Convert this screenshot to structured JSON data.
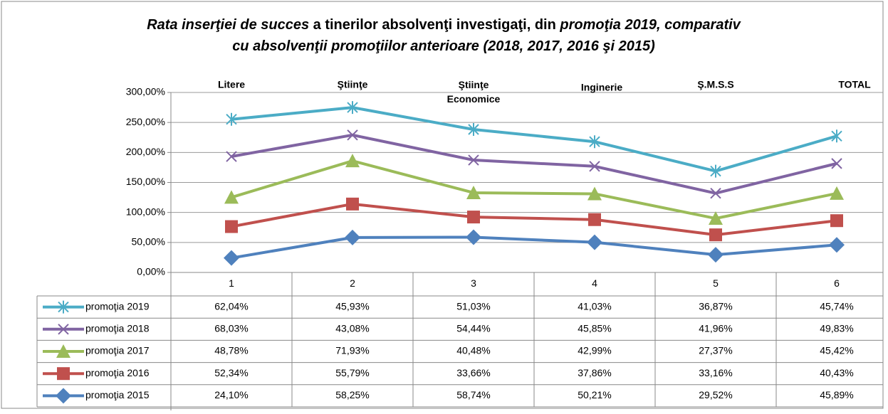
{
  "chart_data": {
    "type": "stacked_line",
    "title": [
      [
        "Rata inserţiei de succes",
        " a tinerilor absolvenţi investigaţi, din ",
        "promoţia 2019, comparativ"
      ],
      [
        "cu absolvenţii promoţiilor anterioare (2018, 2017, 2016 şi 2015)"
      ]
    ],
    "group_labels": [
      "Litere",
      "Ştiinţe",
      "Ştiinţe\nEconomice",
      "Inginerie",
      "Ş.M.S.S",
      "TOTAL"
    ],
    "categories": [
      "1",
      "2",
      "3",
      "4",
      "5",
      "6"
    ],
    "ylim": [
      0,
      300
    ],
    "yticks": [
      {
        "value": 0,
        "label": "0,00%"
      },
      {
        "value": 50,
        "label": "50,00%"
      },
      {
        "value": 100,
        "label": "100,00%"
      },
      {
        "value": 150,
        "label": "150,00%"
      },
      {
        "value": 200,
        "label": "200,00%"
      },
      {
        "value": 250,
        "label": "250,00%"
      },
      {
        "value": 300,
        "label": "300,00%"
      }
    ],
    "grid": true,
    "series": [
      {
        "name": "promoţia 2019",
        "color": "#4bacc6",
        "marker": "star",
        "values": [
          62.04,
          45.93,
          51.03,
          41.03,
          36.87,
          45.74
        ],
        "value_labels": [
          "62,04%",
          "45,93%",
          "51,03%",
          "41,03%",
          "36,87%",
          "45,74%"
        ]
      },
      {
        "name": "promoţia 2018",
        "color": "#8064a2",
        "marker": "x",
        "values": [
          68.03,
          43.08,
          54.44,
          45.85,
          41.96,
          49.83
        ],
        "value_labels": [
          "68,03%",
          "43,08%",
          "54,44%",
          "45,85%",
          "41,96%",
          "49,83%"
        ]
      },
      {
        "name": "promoţia 2017",
        "color": "#9bbb59",
        "marker": "triangle",
        "values": [
          48.78,
          71.93,
          40.48,
          42.99,
          27.37,
          45.42
        ],
        "value_labels": [
          "48,78%",
          "71,93%",
          "40,48%",
          "42,99%",
          "27,37%",
          "45,42%"
        ]
      },
      {
        "name": "promoţia 2016",
        "color": "#c0504d",
        "marker": "square",
        "values": [
          52.34,
          55.79,
          33.66,
          37.86,
          33.16,
          40.43
        ],
        "value_labels": [
          "52,34%",
          "55,79%",
          "33,66%",
          "37,86%",
          "33,16%",
          "40,43%"
        ]
      },
      {
        "name": "promoţia 2015",
        "color": "#4f81bd",
        "marker": "diamond",
        "values": [
          24.1,
          58.25,
          58.74,
          50.21,
          29.52,
          45.89
        ],
        "value_labels": [
          "24,10%",
          "58,25%",
          "58,74%",
          "50,21%",
          "29,52%",
          "45,89%"
        ]
      }
    ]
  }
}
